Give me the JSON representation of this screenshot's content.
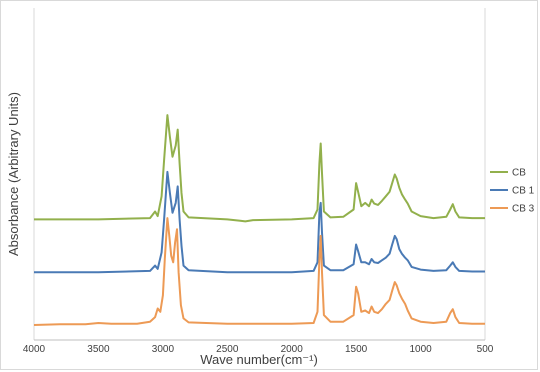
{
  "chart_data": {
    "type": "line",
    "title": "",
    "xlabel": "Wave number(cm⁻¹)",
    "ylabel": "Absorbance (Arbitrary Units)",
    "xlim": [
      4000,
      500
    ],
    "x_reversed": true,
    "x_ticks": [
      4000,
      3500,
      3000,
      2500,
      2000,
      1500,
      1000,
      500
    ],
    "y_ticks_shown": false,
    "grid": false,
    "legend_position": "right",
    "series": [
      {
        "name": "CB",
        "color": "#92b04c",
        "baseline": 1.6,
        "points": [
          [
            4000,
            0
          ],
          [
            3500,
            0
          ],
          [
            3100,
            0.02
          ],
          [
            3060,
            0.12
          ],
          [
            3040,
            0.05
          ],
          [
            3010,
            0.35
          ],
          [
            2990,
            0.9
          ],
          [
            2965,
            1.58
          ],
          [
            2945,
            1.25
          ],
          [
            2925,
            0.95
          ],
          [
            2900,
            1.12
          ],
          [
            2885,
            1.36
          ],
          [
            2870,
            0.85
          ],
          [
            2855,
            0.4
          ],
          [
            2840,
            0.12
          ],
          [
            2800,
            0.03
          ],
          [
            2500,
            0
          ],
          [
            2400,
            -0.02
          ],
          [
            2360,
            -0.03
          ],
          [
            2300,
            -0.01
          ],
          [
            2000,
            0
          ],
          [
            1830,
            0.02
          ],
          [
            1800,
            0.15
          ],
          [
            1785,
            0.85
          ],
          [
            1775,
            1.15
          ],
          [
            1765,
            0.7
          ],
          [
            1750,
            0.12
          ],
          [
            1700,
            0.03
          ],
          [
            1600,
            0.04
          ],
          [
            1520,
            0.15
          ],
          [
            1500,
            0.55
          ],
          [
            1485,
            0.42
          ],
          [
            1460,
            0.2
          ],
          [
            1430,
            0.25
          ],
          [
            1400,
            0.2
          ],
          [
            1380,
            0.3
          ],
          [
            1360,
            0.24
          ],
          [
            1330,
            0.22
          ],
          [
            1300,
            0.28
          ],
          [
            1270,
            0.35
          ],
          [
            1240,
            0.42
          ],
          [
            1220,
            0.55
          ],
          [
            1200,
            0.68
          ],
          [
            1185,
            0.62
          ],
          [
            1165,
            0.48
          ],
          [
            1145,
            0.38
          ],
          [
            1120,
            0.3
          ],
          [
            1100,
            0.24
          ],
          [
            1070,
            0.12
          ],
          [
            1000,
            0.05
          ],
          [
            900,
            0.02
          ],
          [
            800,
            0.04
          ],
          [
            770,
            0.15
          ],
          [
            750,
            0.23
          ],
          [
            730,
            0.12
          ],
          [
            700,
            0.03
          ],
          [
            600,
            0.02
          ],
          [
            500,
            0.02
          ]
        ]
      },
      {
        "name": "CB 1",
        "color": "#4a7ab5",
        "baseline": 0.8,
        "points": [
          [
            4000,
            0
          ],
          [
            3500,
            0
          ],
          [
            3100,
            0.02
          ],
          [
            3060,
            0.1
          ],
          [
            3040,
            0.05
          ],
          [
            3010,
            0.3
          ],
          [
            2990,
            0.8
          ],
          [
            2965,
            1.52
          ],
          [
            2945,
            1.2
          ],
          [
            2925,
            0.9
          ],
          [
            2900,
            1.05
          ],
          [
            2885,
            1.3
          ],
          [
            2870,
            0.8
          ],
          [
            2855,
            0.4
          ],
          [
            2840,
            0.1
          ],
          [
            2800,
            0.03
          ],
          [
            2500,
            0
          ],
          [
            2400,
            0
          ],
          [
            2000,
            0
          ],
          [
            1830,
            0.02
          ],
          [
            1800,
            0.15
          ],
          [
            1785,
            0.9
          ],
          [
            1775,
            1.05
          ],
          [
            1765,
            0.6
          ],
          [
            1750,
            0.1
          ],
          [
            1700,
            0.03
          ],
          [
            1600,
            0.03
          ],
          [
            1520,
            0.12
          ],
          [
            1500,
            0.42
          ],
          [
            1485,
            0.32
          ],
          [
            1460,
            0.15
          ],
          [
            1430,
            0.15
          ],
          [
            1400,
            0.12
          ],
          [
            1380,
            0.2
          ],
          [
            1360,
            0.15
          ],
          [
            1330,
            0.14
          ],
          [
            1300,
            0.18
          ],
          [
            1270,
            0.22
          ],
          [
            1240,
            0.28
          ],
          [
            1220,
            0.42
          ],
          [
            1200,
            0.55
          ],
          [
            1185,
            0.5
          ],
          [
            1165,
            0.35
          ],
          [
            1145,
            0.28
          ],
          [
            1120,
            0.22
          ],
          [
            1100,
            0.18
          ],
          [
            1070,
            0.08
          ],
          [
            1000,
            0.04
          ],
          [
            900,
            0.02
          ],
          [
            800,
            0.03
          ],
          [
            770,
            0.1
          ],
          [
            750,
            0.15
          ],
          [
            730,
            0.08
          ],
          [
            700,
            0.02
          ],
          [
            600,
            0.01
          ],
          [
            500,
            0.01
          ]
        ]
      },
      {
        "name": "CB 3",
        "color": "#ed9a55",
        "baseline": 0,
        "points": [
          [
            4000,
            0
          ],
          [
            3800,
            0.01
          ],
          [
            3600,
            0.01
          ],
          [
            3500,
            0.03
          ],
          [
            3400,
            0.02
          ],
          [
            3200,
            0.02
          ],
          [
            3100,
            0.05
          ],
          [
            3060,
            0.12
          ],
          [
            3040,
            0.25
          ],
          [
            3020,
            0.2
          ],
          [
            3000,
            0.45
          ],
          [
            2985,
            1.0
          ],
          [
            2965,
            1.62
          ],
          [
            2950,
            1.35
          ],
          [
            2935,
            1.05
          ],
          [
            2920,
            0.95
          ],
          [
            2905,
            1.25
          ],
          [
            2890,
            1.45
          ],
          [
            2878,
            0.8
          ],
          [
            2860,
            0.3
          ],
          [
            2840,
            0.1
          ],
          [
            2800,
            0.04
          ],
          [
            2500,
            0.02
          ],
          [
            2400,
            0.02
          ],
          [
            2000,
            0.02
          ],
          [
            1830,
            0.03
          ],
          [
            1800,
            0.2
          ],
          [
            1785,
            1.0
          ],
          [
            1775,
            1.35
          ],
          [
            1765,
            0.8
          ],
          [
            1750,
            0.15
          ],
          [
            1700,
            0.05
          ],
          [
            1600,
            0.05
          ],
          [
            1520,
            0.15
          ],
          [
            1500,
            0.58
          ],
          [
            1485,
            0.48
          ],
          [
            1460,
            0.2
          ],
          [
            1430,
            0.22
          ],
          [
            1400,
            0.18
          ],
          [
            1380,
            0.28
          ],
          [
            1360,
            0.2
          ],
          [
            1330,
            0.18
          ],
          [
            1300,
            0.24
          ],
          [
            1270,
            0.32
          ],
          [
            1240,
            0.38
          ],
          [
            1220,
            0.52
          ],
          [
            1200,
            0.65
          ],
          [
            1185,
            0.6
          ],
          [
            1165,
            0.48
          ],
          [
            1145,
            0.4
          ],
          [
            1120,
            0.32
          ],
          [
            1100,
            0.22
          ],
          [
            1070,
            0.1
          ],
          [
            1000,
            0.05
          ],
          [
            900,
            0.03
          ],
          [
            800,
            0.05
          ],
          [
            770,
            0.18
          ],
          [
            750,
            0.24
          ],
          [
            730,
            0.12
          ],
          [
            700,
            0.03
          ],
          [
            600,
            0.02
          ],
          [
            500,
            0.02
          ]
        ]
      }
    ]
  }
}
